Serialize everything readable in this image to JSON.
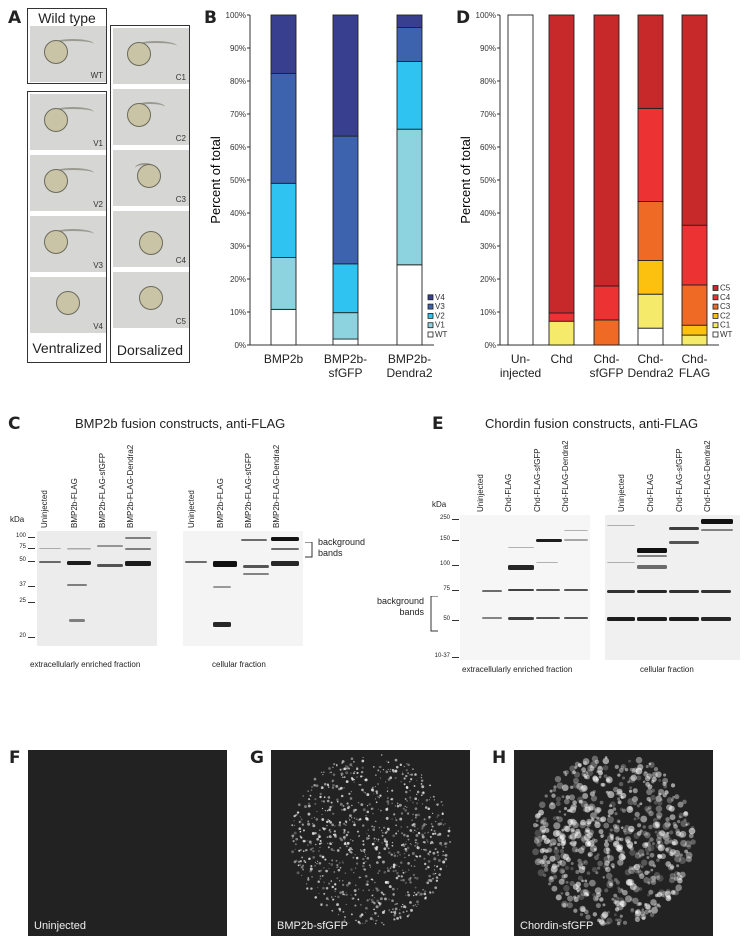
{
  "panels": {
    "A": "A",
    "B": "B",
    "C": "C",
    "D": "D",
    "E": "E",
    "F": "F",
    "G": "G",
    "H": "H"
  },
  "panel_a": {
    "wild_type_title": "Wild type",
    "ventralized_title": "Ventralized",
    "dorsalized_title": "Dorsalized",
    "wt": "WT",
    "ventral": [
      "V1",
      "V2",
      "V3",
      "V4"
    ],
    "dorsal": [
      "C1",
      "C2",
      "C3",
      "C4",
      "C5"
    ]
  },
  "chart_data": [
    {
      "type": "bar",
      "stacked": true,
      "ylabel": "Percent of total",
      "ylim": [
        0,
        100
      ],
      "yticks": [
        "0%",
        "10%",
        "20%",
        "30%",
        "40%",
        "50%",
        "60%",
        "70%",
        "80%",
        "90%",
        "100%"
      ],
      "categories": [
        [
          "BMP2b",
          ""
        ],
        [
          "BMP2b-",
          "sfGFP"
        ],
        [
          "BMP2b-",
          "Dendra2"
        ]
      ],
      "series": [
        {
          "name": "WT",
          "color": "#ffffff",
          "values": [
            10.8,
            1.8,
            24.3
          ]
        },
        {
          "name": "V1",
          "color": "#8dd3df",
          "values": [
            15.7,
            8.0,
            41.1
          ]
        },
        {
          "name": "V2",
          "color": "#2ec3f0",
          "values": [
            22.5,
            14.8,
            20.5
          ]
        },
        {
          "name": "V3",
          "color": "#3d62ae",
          "values": [
            33.3,
            38.7,
            10.3
          ]
        },
        {
          "name": "V4",
          "color": "#383f8e",
          "values": [
            17.7,
            36.7,
            3.8
          ]
        }
      ],
      "legend": "bottom-right"
    },
    {
      "type": "bar",
      "stacked": true,
      "ylabel": "Percent of total",
      "ylim": [
        0,
        100
      ],
      "yticks": [
        "0%",
        "10%",
        "20%",
        "30%",
        "40%",
        "50%",
        "60%",
        "70%",
        "80%",
        "90%",
        "100%"
      ],
      "categories": [
        [
          "Un-",
          "injected"
        ],
        [
          "Chd",
          ""
        ],
        [
          "Chd-",
          "sfGFP"
        ],
        [
          "Chd-",
          "Dendra2"
        ],
        [
          "Chd-",
          "FLAG"
        ]
      ],
      "series": [
        {
          "name": "WT",
          "color": "#ffffff",
          "values": [
            100,
            0,
            0,
            5.1,
            0
          ]
        },
        {
          "name": "C1",
          "color": "#f6ea6a",
          "values": [
            0,
            7.2,
            0,
            10.3,
            3.0
          ]
        },
        {
          "name": "C2",
          "color": "#fcc10f",
          "values": [
            0,
            0,
            0,
            10.2,
            3.0
          ]
        },
        {
          "name": "C3",
          "color": "#ee6a25",
          "values": [
            0,
            0,
            7.6,
            17.9,
            12.2
          ]
        },
        {
          "name": "C4",
          "color": "#ed3234",
          "values": [
            0,
            2.5,
            10.3,
            28.2,
            18.1
          ]
        },
        {
          "name": "C5",
          "color": "#c7282a",
          "values": [
            0,
            90.3,
            82.1,
            28.3,
            63.7
          ]
        }
      ],
      "legend": "bottom-right"
    }
  ],
  "panel_c": {
    "title": "BMP2b fusion constructs, anti-FLAG",
    "kda": "kDa",
    "lanes": [
      "Uninjected",
      "BMP2b-FLAG",
      "BMP2b-FLAG-sfGFP",
      "BMP2b-FLAG-Dendra2"
    ],
    "markers": [
      "100",
      "75",
      "50",
      "37",
      "25",
      "20"
    ],
    "background_bands": "background",
    "background_bands2": "bands",
    "fraction_left": "extracellularly enriched fraction",
    "fraction_right": "cellular fraction"
  },
  "panel_e": {
    "title": "Chordin fusion constructs, anti-FLAG",
    "kda": "kDa",
    "lanes": [
      "Uninjected",
      "Chd-FLAG",
      "Chd-FLAG-sfGFP",
      "Chd-FLAG-Dendra2"
    ],
    "markers": [
      "250",
      "150",
      "100",
      "75",
      "50",
      "10-37"
    ],
    "background_bands": "background",
    "background_bands2": "bands",
    "fraction_left": "extracellularly enriched fraction",
    "fraction_right": "cellular fraction"
  },
  "panel_f": {
    "label": "Uninjected"
  },
  "panel_g": {
    "label": "BMP2b-sfGFP"
  },
  "panel_h": {
    "label": "Chordin-sfGFP"
  }
}
